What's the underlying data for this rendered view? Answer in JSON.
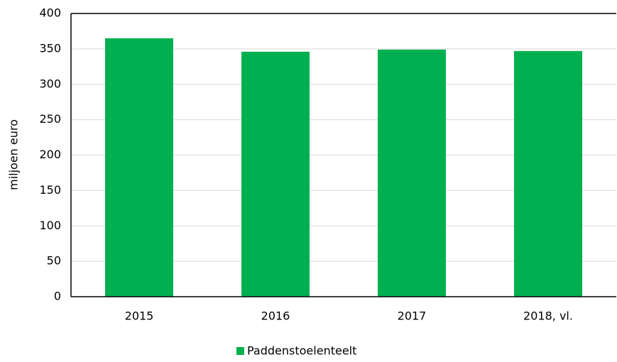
{
  "chart_data": {
    "type": "bar",
    "y_label": "miljoen euro",
    "categories": [
      "2015",
      "2016",
      "2017",
      "2018, vl."
    ],
    "series": [
      {
        "name": "Paddenstoelenteelt",
        "color": "#00b050",
        "values": [
          365,
          346,
          349,
          347
        ]
      }
    ],
    "ylim": [
      0,
      400
    ],
    "yticks": [
      0,
      50,
      100,
      150,
      200,
      250,
      300,
      350,
      400
    ],
    "grid": true,
    "legend": "bottom"
  }
}
